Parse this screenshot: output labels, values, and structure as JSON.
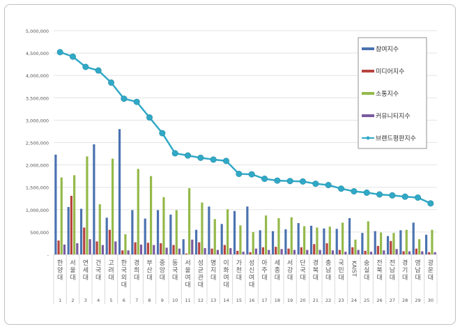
{
  "chart_data": {
    "type": "bar+line",
    "categories": [
      "한양대",
      "서울대",
      "연세대",
      "건국대",
      "고려대",
      "한국외대",
      "경희대",
      "부산대",
      "중앙대",
      "동국대",
      "서울여대",
      "성균관대",
      "명지대",
      "이화여대",
      "가천대",
      "성신여대",
      "아주대",
      "세종대",
      "서강대",
      "단국대",
      "경북대",
      "충남대",
      "국민대",
      "KAIST",
      "숭실대",
      "전북대",
      "전남대",
      "경기대",
      "영남대",
      "광운대"
    ],
    "ranks": [
      "1",
      "2",
      "3",
      "4",
      "5",
      "6",
      "7",
      "8",
      "9",
      "10",
      "11",
      "12",
      "13",
      "14",
      "15",
      "16",
      "17",
      "18",
      "19",
      "20",
      "21",
      "22",
      "23",
      "24",
      "25",
      "26",
      "27",
      "28",
      "29",
      "30"
    ],
    "y_ticks": [
      "-",
      "500,000",
      "1,000,000",
      "1,500,000",
      "2,000,000",
      "2,500,000",
      "3,000,000",
      "3,500,000",
      "4,000,000",
      "4,500,000",
      "5,000,000"
    ],
    "ylim": [
      0,
      5000000
    ],
    "grid": true,
    "legend": "right",
    "series": [
      {
        "name": "참여지수",
        "type": "bar",
        "color": "#4a72b0",
        "values": [
          2230000,
          1060000,
          1020000,
          2460000,
          820000,
          2800000,
          990000,
          800000,
          990000,
          890000,
          340000,
          550000,
          1070000,
          680000,
          970000,
          1070000,
          540000,
          520000,
          560000,
          700000,
          640000,
          580000,
          570000,
          810000,
          480000,
          520000,
          410000,
          540000,
          710000,
          440000
        ]
      },
      {
        "name": "미디어지수",
        "type": "bar",
        "color": "#b8433f",
        "values": [
          310000,
          1310000,
          600000,
          290000,
          550000,
          90000,
          270000,
          260000,
          250000,
          210000,
          20000,
          270000,
          130000,
          210000,
          80000,
          50000,
          160000,
          170000,
          130000,
          160000,
          230000,
          250000,
          100000,
          160000,
          80000,
          190000,
          300000,
          70000,
          130000,
          50000
        ]
      },
      {
        "name": "소통지수",
        "type": "bar",
        "color": "#94b94a",
        "values": [
          1720000,
          1770000,
          2190000,
          1120000,
          2140000,
          450000,
          1910000,
          1750000,
          1280000,
          990000,
          1480000,
          1160000,
          790000,
          1010000,
          650000,
          500000,
          870000,
          810000,
          830000,
          630000,
          600000,
          620000,
          710000,
          330000,
          740000,
          490000,
          480000,
          550000,
          340000,
          550000
        ]
      },
      {
        "name": "커뮤니티지수",
        "type": "bar",
        "color": "#7a5a9e",
        "values": [
          220000,
          250000,
          340000,
          210000,
          290000,
          90000,
          220000,
          210000,
          150000,
          130000,
          330000,
          140000,
          100000,
          140000,
          60000,
          130000,
          100000,
          120000,
          100000,
          100000,
          100000,
          90000,
          60000,
          100000,
          60000,
          90000,
          120000,
          70000,
          70000,
          50000
        ]
      },
      {
        "name": "브랜드평판지수",
        "type": "line",
        "color": "#31a9c6",
        "values": [
          4520000,
          4420000,
          4190000,
          4110000,
          3840000,
          3480000,
          3410000,
          3060000,
          2710000,
          2260000,
          2210000,
          2160000,
          2120000,
          2090000,
          1800000,
          1790000,
          1690000,
          1650000,
          1640000,
          1630000,
          1580000,
          1550000,
          1470000,
          1410000,
          1380000,
          1340000,
          1320000,
          1290000,
          1270000,
          1140000
        ]
      }
    ]
  }
}
